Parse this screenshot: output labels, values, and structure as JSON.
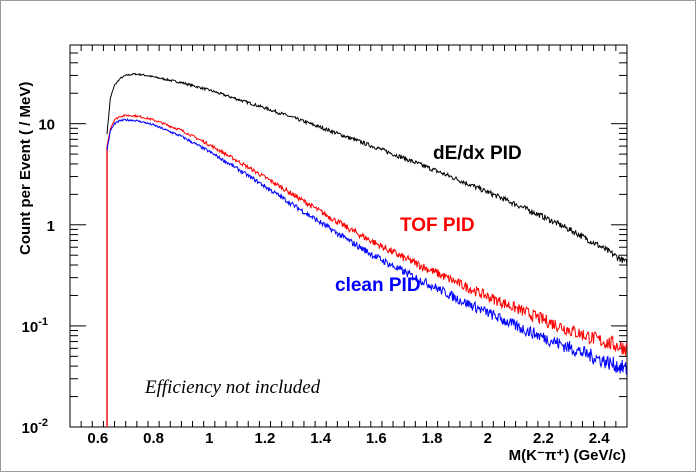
{
  "chart_data": {
    "type": "line",
    "title": "",
    "xlabel": "M(K⁻π⁺) (GeV/c)",
    "ylabel": "Count per Event ( / MeV)",
    "xlim": [
      0.5,
      2.5
    ],
    "ylim": [
      0.01,
      60
    ],
    "yscale": "log",
    "grid": false,
    "legend": "none",
    "x_ticks": [
      {
        "value": 0.6,
        "label": "0.6"
      },
      {
        "value": 0.8,
        "label": "0.8"
      },
      {
        "value": 1.0,
        "label": "1"
      },
      {
        "value": 1.2,
        "label": "1.2"
      },
      {
        "value": 1.4,
        "label": "1.4"
      },
      {
        "value": 1.6,
        "label": "1.6"
      },
      {
        "value": 1.8,
        "label": "1.8"
      },
      {
        "value": 2.0,
        "label": "2"
      },
      {
        "value": 2.2,
        "label": "2.2"
      },
      {
        "value": 2.4,
        "label": "2.4"
      }
    ],
    "y_ticks": [
      {
        "value": 0.01,
        "base": "10",
        "exp": "-2"
      },
      {
        "value": 0.1,
        "base": "10",
        "exp": "-1"
      },
      {
        "value": 1,
        "base": "1",
        "exp": ""
      },
      {
        "value": 10,
        "base": "10",
        "exp": ""
      }
    ],
    "series": [
      {
        "name": "dE/dx PID",
        "color": "#000000",
        "x": [
          0.633,
          0.645,
          0.66,
          0.68,
          0.7,
          0.73,
          0.76,
          0.8,
          0.9,
          1.0,
          1.1,
          1.2,
          1.3,
          1.4,
          1.5,
          1.6,
          1.7,
          1.8,
          1.9,
          2.0,
          2.1,
          2.2,
          2.3,
          2.4,
          2.5
        ],
        "y": [
          8,
          18,
          24,
          28,
          30,
          31,
          30.5,
          29,
          25.5,
          21.5,
          17.5,
          14.3,
          11.5,
          9.2,
          7.3,
          5.8,
          4.55,
          3.55,
          2.75,
          2.1,
          1.6,
          1.2,
          0.88,
          0.62,
          0.42
        ]
      },
      {
        "name": "TOF PID",
        "color": "#ff0000",
        "x": [
          0.633,
          0.645,
          0.66,
          0.68,
          0.7,
          0.73,
          0.76,
          0.8,
          0.9,
          1.0,
          1.1,
          1.2,
          1.3,
          1.4,
          1.5,
          1.6,
          1.7,
          1.8,
          1.9,
          2.0,
          2.1,
          2.2,
          2.3,
          2.4,
          2.5
        ],
        "y": [
          6,
          9,
          11,
          11.8,
          12.1,
          12.0,
          11.6,
          10.9,
          8.6,
          6.2,
          4.3,
          2.95,
          2.0,
          1.35,
          0.92,
          0.65,
          0.47,
          0.35,
          0.26,
          0.195,
          0.15,
          0.115,
          0.09,
          0.072,
          0.06
        ]
      },
      {
        "name": "clean PID",
        "color": "#0000ff",
        "x": [
          0.633,
          0.645,
          0.66,
          0.68,
          0.7,
          0.73,
          0.76,
          0.8,
          0.9,
          1.0,
          1.1,
          1.2,
          1.3,
          1.4,
          1.5,
          1.6,
          1.7,
          1.8,
          1.9,
          2.0,
          2.1,
          2.2,
          2.3,
          2.4,
          2.5
        ],
        "y": [
          5.5,
          8.5,
          10.0,
          10.7,
          10.9,
          10.8,
          10.4,
          9.7,
          7.5,
          5.3,
          3.6,
          2.4,
          1.58,
          1.05,
          0.7,
          0.48,
          0.34,
          0.25,
          0.18,
          0.135,
          0.1,
          0.077,
          0.06,
          0.047,
          0.037
        ]
      }
    ],
    "fill": {
      "name": "threshold edge",
      "color": "#ff0000",
      "x": 0.633
    },
    "annotations": [
      {
        "text": "dE/dx PID",
        "color": "#000000"
      },
      {
        "text": "TOF PID",
        "color": "#ff0000"
      },
      {
        "text": "clean PID",
        "color": "#0000ff"
      },
      {
        "text": "Efficiency not included",
        "color": "#000000"
      }
    ]
  }
}
